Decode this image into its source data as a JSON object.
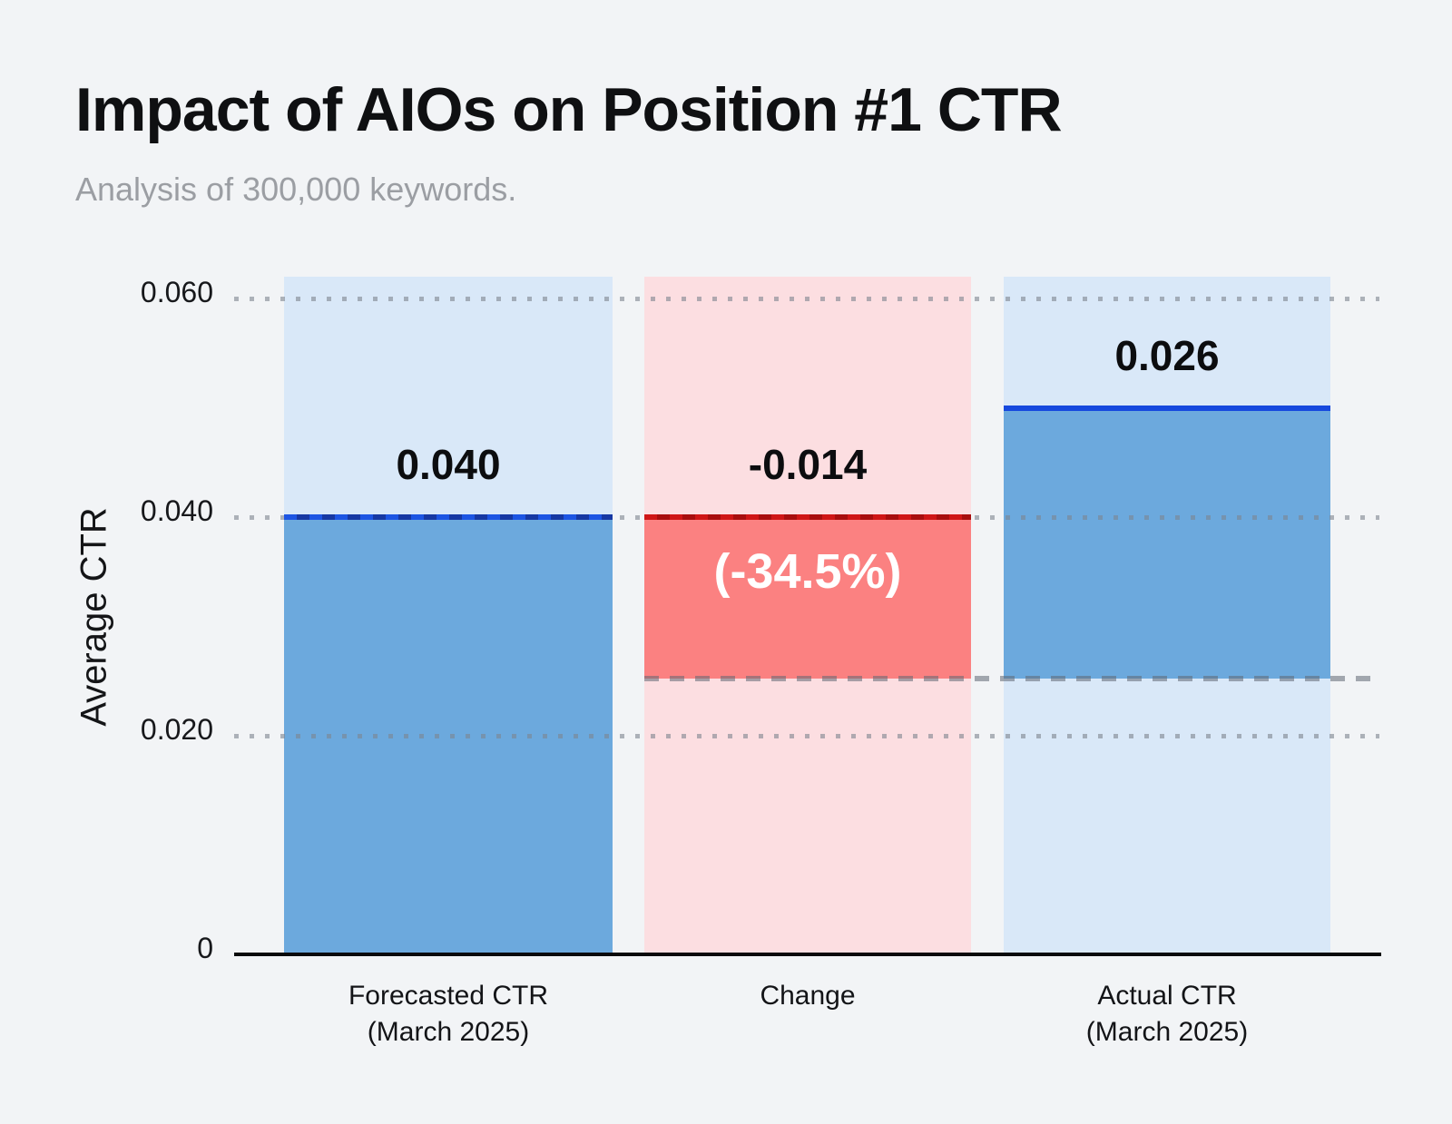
{
  "chart_data": {
    "type": "bar",
    "subtype": "waterfall",
    "title": "Impact of AIOs on Position #1 CTR",
    "subtitle": "Analysis of 300,000 keywords.",
    "ylabel": "Average CTR",
    "ylim": [
      0,
      0.062
    ],
    "grid": "dotted-horizontal",
    "yticks": [
      {
        "v": 0.06,
        "label": "0.060"
      },
      {
        "v": 0.04,
        "label": "0.040"
      },
      {
        "v": 0.02,
        "label": "0.020"
      },
      {
        "v": 0,
        "label": "0"
      }
    ],
    "categories": [
      "Forecasted CTR (March 2025)",
      "Change",
      "Actual CTR (March 2025)"
    ],
    "values": [
      0.04,
      -0.014,
      0.026
    ],
    "change_percent_label": "(-34.5%)",
    "columns": [
      {
        "category": [
          "Forecasted CTR",
          "(March 2025)"
        ],
        "value": 0.04,
        "value_label": "0.040",
        "kind": "blue",
        "line_style": "blue-dashed",
        "draw_top": 0.04,
        "draw_bottom": 0
      },
      {
        "category": [
          "Change"
        ],
        "value": -0.014,
        "value_label": "-0.014",
        "pct_label": "(-34.5%)",
        "kind": "red",
        "line_style": "red-dashed",
        "draw_top": 0.04,
        "draw_bottom": 0.0252
      },
      {
        "category": [
          "Actual CTR",
          "(March 2025)"
        ],
        "value": 0.026,
        "value_label": "0.026",
        "kind": "blue",
        "line_style": "blue-solid",
        "draw_top": 0.05,
        "draw_bottom": 0.0252
      }
    ],
    "dashed_reference_value": 0.026,
    "colors": {
      "bg": "#F2F4F6",
      "title": "#0F1012",
      "subtitle": "#9B9EA3",
      "light-blue": "#D9E8F8",
      "mid-blue": "#6CA9DD",
      "blue-line": "#1548DE",
      "blue-dash-bright": "#1C55E3",
      "blue-dash-dark": "#1638A3",
      "pink": "#FCDEE1",
      "red": "#FB8181",
      "red-dash-bright": "#CF1616",
      "red-dash-dark": "#A80E0E",
      "axis": "#0A0A0B",
      "grid-dot": "rgba(125,132,142,0.6)",
      "dashed-gray": "rgba(95,103,115,0.55)",
      "pct-text": "#FFFFFF"
    }
  }
}
